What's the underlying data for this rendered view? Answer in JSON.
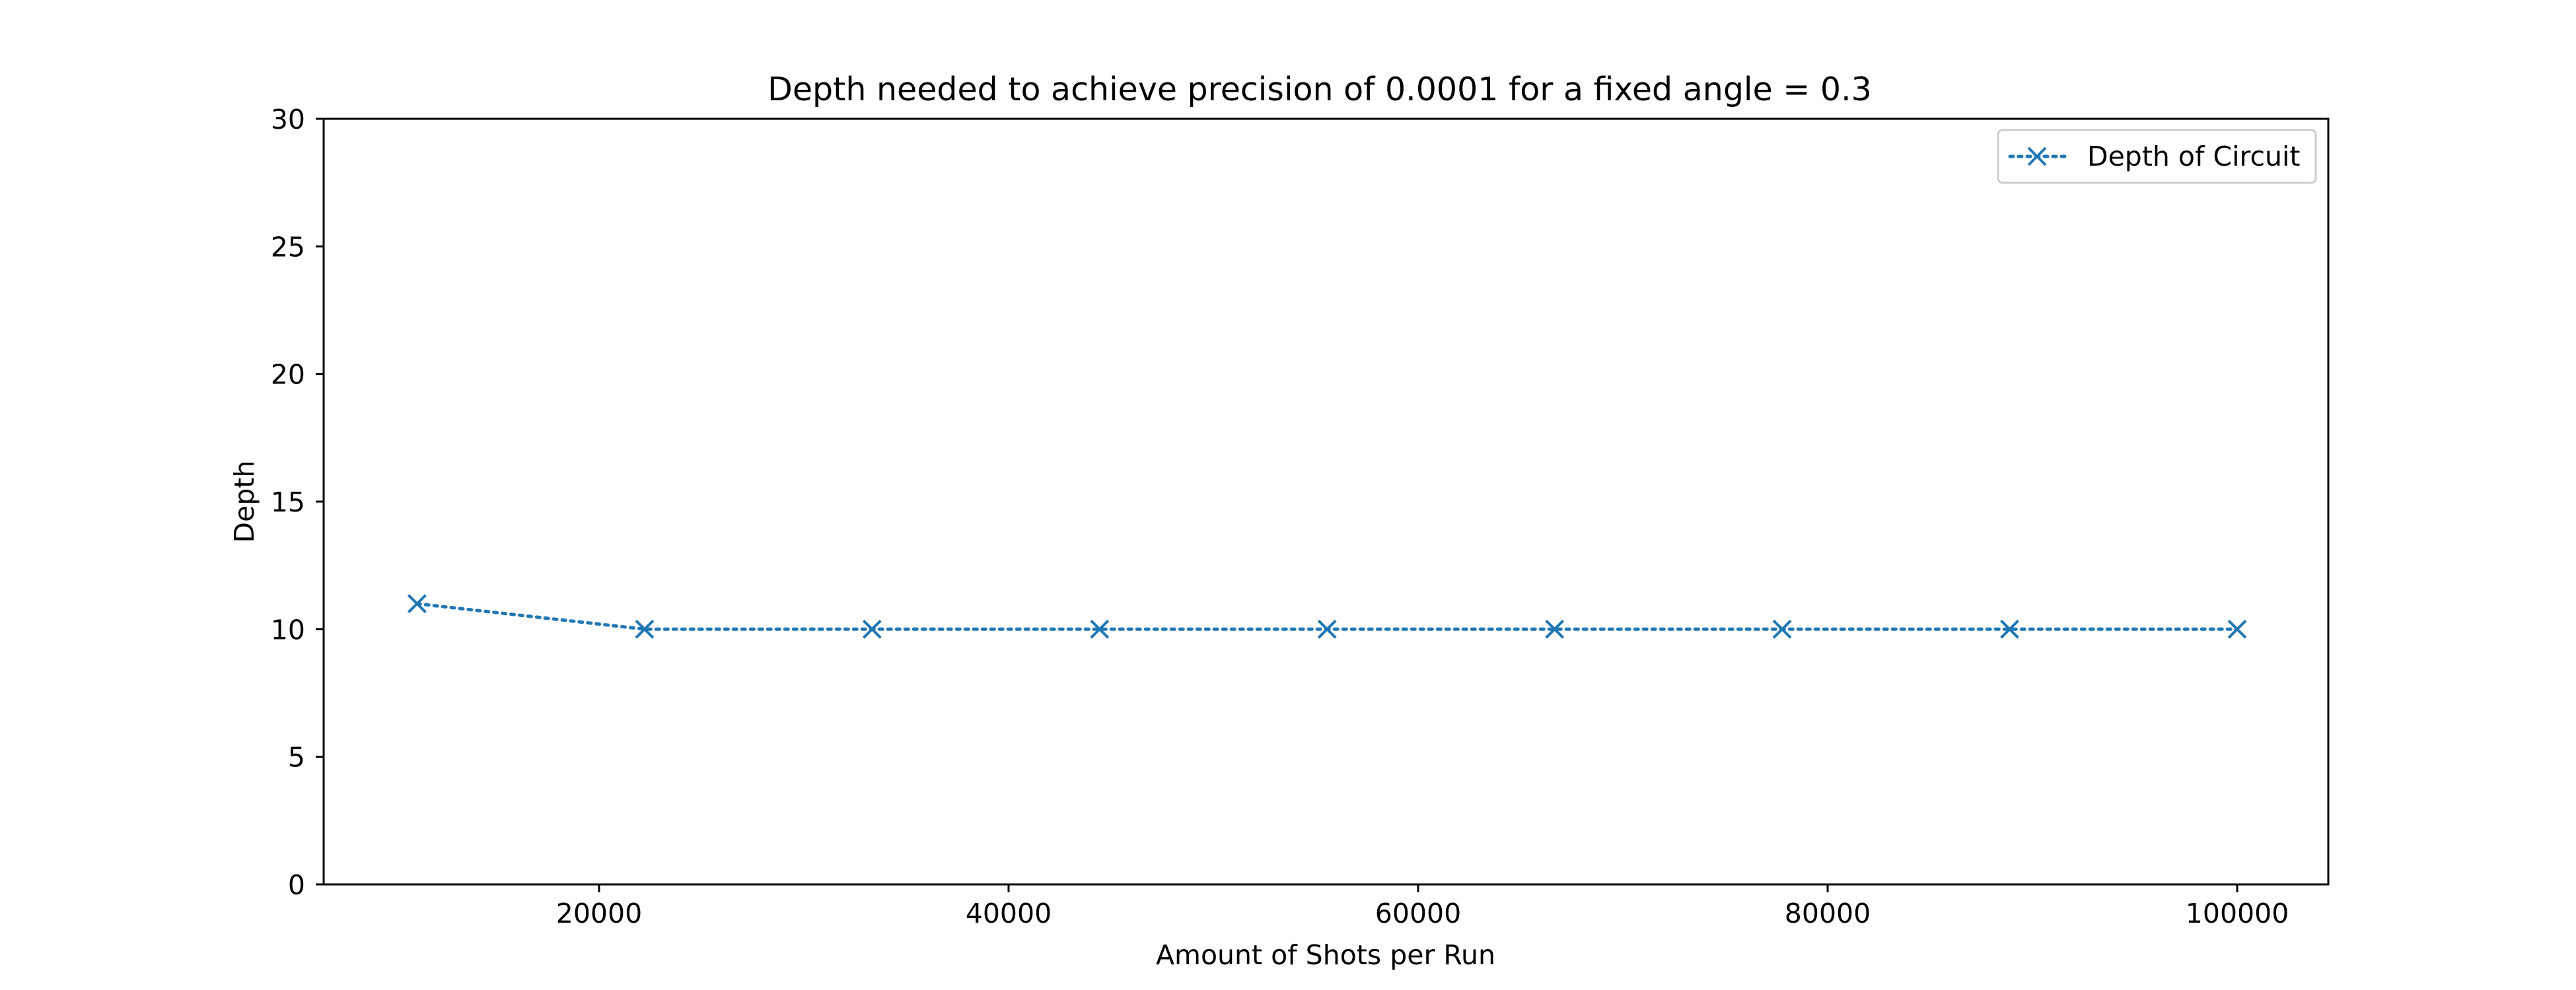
{
  "chart_data": {
    "type": "line",
    "title": "Depth needed to achieve precision of 0.0001 for a fixed angle = 0.3",
    "xlabel": "Amount of Shots per Run",
    "ylabel": "Depth",
    "xlim": [
      6550,
      104450
    ],
    "ylim": [
      0,
      30
    ],
    "xticks": [
      20000,
      40000,
      60000,
      80000,
      100000
    ],
    "yticks": [
      0,
      5,
      10,
      15,
      20,
      25,
      30
    ],
    "grid": false,
    "legend_position": "top-right",
    "series": [
      {
        "name": "Depth of Circuit",
        "color": "#1f77b4",
        "line_style": "dotted",
        "marker": "x",
        "x": [
          11111,
          22222,
          33333,
          44444,
          55555,
          66666,
          77777,
          88888,
          100000
        ],
        "y": [
          11,
          10,
          10,
          10,
          10,
          10,
          10,
          10,
          10
        ]
      }
    ]
  }
}
